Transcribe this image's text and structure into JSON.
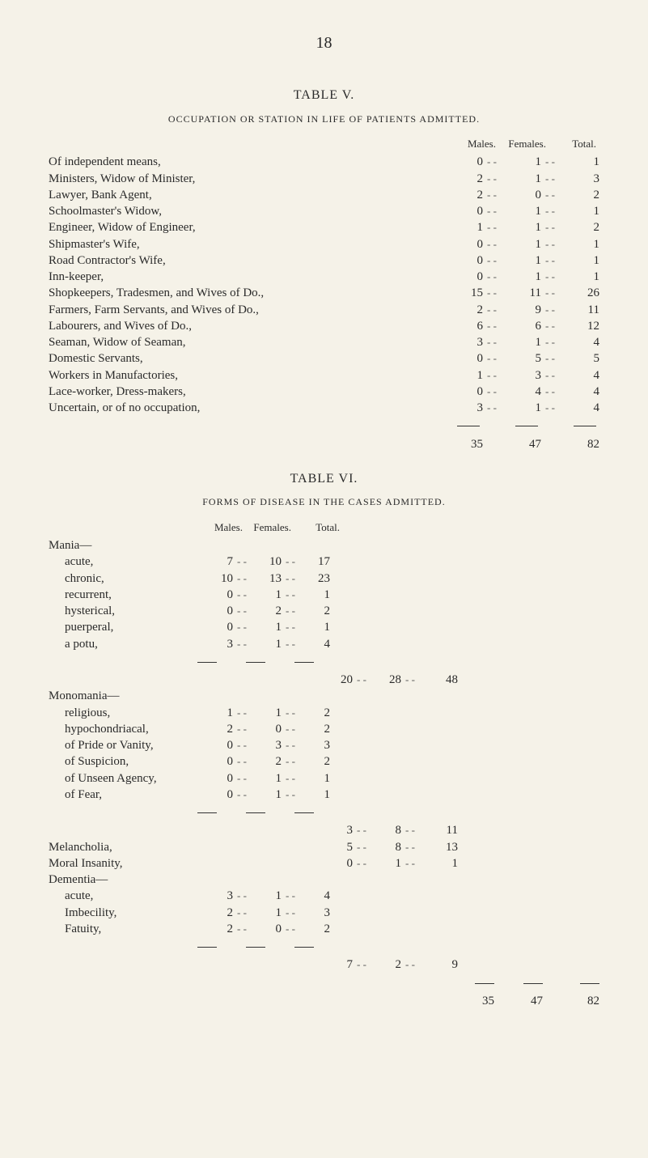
{
  "page_number": "18",
  "table5": {
    "title": "TABLE V.",
    "subtitle": "OCCUPATION OR STATION IN LIFE OF PATIENTS ADMITTED.",
    "columns": [
      "Males.",
      "Females.",
      "Total."
    ],
    "rows": [
      {
        "label": "Of independent means,",
        "m": "0",
        "f": "1",
        "t": "1"
      },
      {
        "label": "Ministers, Widow of Minister,",
        "m": "2",
        "f": "1",
        "t": "3"
      },
      {
        "label": "Lawyer, Bank Agent,",
        "m": "2",
        "f": "0",
        "t": "2"
      },
      {
        "label": "Schoolmaster's Widow,",
        "m": "0",
        "f": "1",
        "t": "1"
      },
      {
        "label": "Engineer, Widow of Engineer,",
        "m": "1",
        "f": "1",
        "t": "2"
      },
      {
        "label": "Shipmaster's Wife,",
        "m": "0",
        "f": "1",
        "t": "1"
      },
      {
        "label": "Road Contractor's Wife,",
        "m": "0",
        "f": "1",
        "t": "1"
      },
      {
        "label": "Inn-keeper,",
        "m": "0",
        "f": "1",
        "t": "1"
      },
      {
        "label": "Shopkeepers, Tradesmen, and Wives of Do.,",
        "m": "15",
        "f": "11",
        "t": "26"
      },
      {
        "label": "Farmers, Farm Servants, and Wives of Do.,",
        "m": "2",
        "f": "9",
        "t": "11"
      },
      {
        "label": "Labourers, and Wives of Do.,",
        "m": "6",
        "f": "6",
        "t": "12"
      },
      {
        "label": "Seaman, Widow of Seaman,",
        "m": "3",
        "f": "1",
        "t": "4"
      },
      {
        "label": "Domestic Servants,",
        "m": "0",
        "f": "5",
        "t": "5"
      },
      {
        "label": "Workers in Manufactories,",
        "m": "1",
        "f": "3",
        "t": "4"
      },
      {
        "label": "Lace-worker, Dress-makers,",
        "m": "0",
        "f": "4",
        "t": "4"
      },
      {
        "label": "Uncertain, or of no occupation,",
        "m": "3",
        "f": "1",
        "t": "4"
      }
    ],
    "totals": {
      "m": "35",
      "f": "47",
      "t": "82"
    }
  },
  "table6": {
    "title": "TABLE VI.",
    "subtitle": "FORMS OF DISEASE IN THE CASES ADMITTED.",
    "inner_columns": [
      "Males.",
      "Females.",
      "Total."
    ],
    "groups": [
      {
        "head": "Mania—",
        "items": [
          {
            "label": "acute,",
            "m": "7",
            "f": "10",
            "t": "17"
          },
          {
            "label": "chronic,",
            "m": "10",
            "f": "13",
            "t": "23"
          },
          {
            "label": "recurrent,",
            "m": "0",
            "f": "1",
            "t": "1"
          },
          {
            "label": "hysterical,",
            "m": "0",
            "f": "2",
            "t": "2"
          },
          {
            "label": "puerperal,",
            "m": "0",
            "f": "1",
            "t": "1"
          },
          {
            "label": "a potu,",
            "m": "3",
            "f": "1",
            "t": "4"
          }
        ],
        "group_total": {
          "gm": "20",
          "gf": "28",
          "gt": "48"
        }
      },
      {
        "head": "Monomania—",
        "items": [
          {
            "label": "religious,",
            "m": "1",
            "f": "1",
            "t": "2"
          },
          {
            "label": "hypochondriacal,",
            "m": "2",
            "f": "0",
            "t": "2"
          },
          {
            "label": "of Pride or Vanity,",
            "m": "0",
            "f": "3",
            "t": "3"
          },
          {
            "label": "of Suspicion,",
            "m": "0",
            "f": "2",
            "t": "2"
          },
          {
            "label": "of Unseen Agency,",
            "m": "0",
            "f": "1",
            "t": "1"
          },
          {
            "label": "of Fear,",
            "m": "0",
            "f": "1",
            "t": "1"
          }
        ],
        "group_total": {
          "gm": "3",
          "gf": "8",
          "gt": "11"
        }
      }
    ],
    "single_lines": [
      {
        "label": "Melancholia,",
        "gm": "5",
        "gf": "8",
        "gt": "13"
      },
      {
        "label": "Moral Insanity,",
        "gm": "0",
        "gf": "1",
        "gt": "1"
      }
    ],
    "dementia": {
      "head": "Dementia—",
      "items": [
        {
          "label": "acute,",
          "m": "3",
          "f": "1",
          "t": "4"
        },
        {
          "label": "Imbecility,",
          "m": "2",
          "f": "1",
          "t": "3"
        },
        {
          "label": "Fatuity,",
          "m": "2",
          "f": "0",
          "t": "2"
        }
      ],
      "group_total": {
        "gm": "7",
        "gf": "2",
        "gt": "9"
      }
    },
    "grand_totals": {
      "gm": "35",
      "gf": "47",
      "gt": "82"
    }
  }
}
